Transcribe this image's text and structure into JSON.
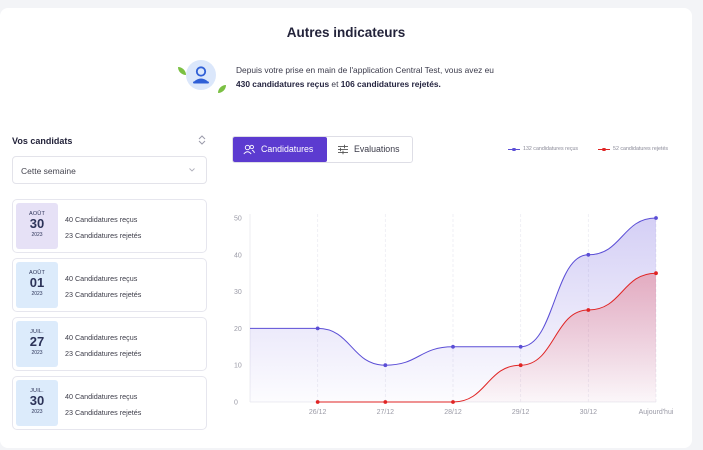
{
  "header": {
    "title": "Autres indicateurs",
    "intro_line1": "Depuis votre prise en main de l'application Central Test, vous avez eu",
    "received_bold": "430 candidatures reçus",
    "joiner": " et ",
    "rejected_bold": "106 candidatures rejetés."
  },
  "sidebar": {
    "title": "Vos candidats",
    "period_select": "Cette semaine",
    "days": [
      {
        "month": "AOÛT",
        "day": "30",
        "year": "2023",
        "received": "40 Candidatures reçus",
        "rejected": "23 Candidatures rejetés",
        "highlight": "purple"
      },
      {
        "month": "AOÛT",
        "day": "01",
        "year": "2023",
        "received": "40 Candidatures reçus",
        "rejected": "23 Candidatures rejetés",
        "highlight": "blue"
      },
      {
        "month": "JUIL.",
        "day": "27",
        "year": "2023",
        "received": "40 Candidatures reçus",
        "rejected": "23 Candidatures rejetés",
        "highlight": "blue"
      },
      {
        "month": "JUIL.",
        "day": "30",
        "year": "2023",
        "received": "40 Candidatures reçus",
        "rejected": "23 Candidatures rejetés",
        "highlight": "blue"
      }
    ]
  },
  "tabs": {
    "candidatures": "Candidatures",
    "evaluations": "Evaluations",
    "active": "candidatures"
  },
  "colors": {
    "accent": "#5c3bd0",
    "received": "#5b4ed6",
    "rejected": "#e02424"
  },
  "chart_data": {
    "type": "line",
    "categories": [
      "",
      "26/12",
      "27/12",
      "28/12",
      "29/12",
      "30/12",
      "Aujourd'hui"
    ],
    "series": [
      {
        "name": "132 candidatures reçus",
        "color": "#5b4ed6",
        "values": [
          20,
          20,
          10,
          15,
          15,
          40,
          50
        ]
      },
      {
        "name": "52 candidatures rejetés",
        "color": "#e02424",
        "values": [
          null,
          0,
          0,
          0,
          10,
          25,
          35
        ]
      }
    ],
    "yticks": [
      0,
      10,
      20,
      30,
      40,
      50
    ],
    "ylim": [
      0,
      50
    ],
    "legend_position": "top-right",
    "grid": "vertical"
  }
}
